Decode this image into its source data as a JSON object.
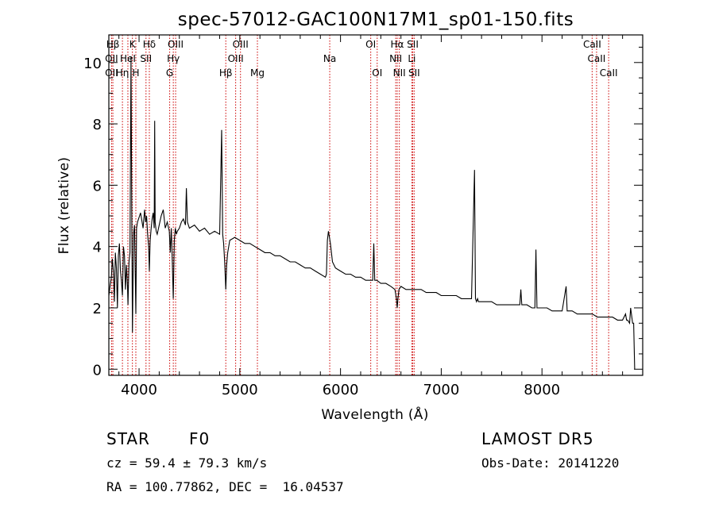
{
  "title": "spec-57012-GAC100N17M1_sp01-150.fits",
  "footer": {
    "class_label": "STAR",
    "subclass": "F0",
    "survey": "LAMOST DR5",
    "cz": "cz = 59.4 ± 79.3 km/s",
    "obs_date": "Obs-Date: 20141220",
    "coords": "RA = 100.77862, DEC =  16.04537"
  },
  "colors": {
    "spectrum": "#000000",
    "line_marker": "#cc0000",
    "background": "#ffffff"
  },
  "chart_data": {
    "type": "line",
    "title": "spec-57012-GAC100N17M1_sp01-150.fits",
    "xlabel": "Wavelength (Å)",
    "ylabel": "Flux (relative)",
    "xlim": [
      3700,
      9000
    ],
    "ylim": [
      -0.2,
      10.9
    ],
    "x_ticks": [
      4000,
      5000,
      6000,
      7000,
      8000
    ],
    "y_ticks": [
      0,
      2,
      4,
      6,
      8,
      10
    ],
    "grid": false,
    "spectral_lines": [
      {
        "label": "Hβ",
        "wavelength": 3740,
        "row": 0
      },
      {
        "label": "OII",
        "wavelength": 3727,
        "row": 1
      },
      {
        "label": "OII",
        "wavelength": 3727,
        "row": 2
      },
      {
        "label": "Hη",
        "wavelength": 3835,
        "row": 2
      },
      {
        "label": "HeI",
        "wavelength": 3889,
        "row": 1
      },
      {
        "label": "K",
        "wavelength": 3934,
        "row": 0
      },
      {
        "label": "H",
        "wavelength": 3968,
        "row": 2
      },
      {
        "label": "Hδ",
        "wavelength": 4102,
        "row": 0
      },
      {
        "label": "SII",
        "wavelength": 4069,
        "row": 1
      },
      {
        "label": "OIII",
        "wavelength": 4363,
        "row": 0
      },
      {
        "label": "Hγ",
        "wavelength": 4340,
        "row": 1
      },
      {
        "label": "G",
        "wavelength": 4304,
        "row": 2
      },
      {
        "label": "Hβ",
        "wavelength": 4861,
        "row": 2
      },
      {
        "label": "OIII",
        "wavelength": 5007,
        "row": 0
      },
      {
        "label": "OIII",
        "wavelength": 4959,
        "row": 1
      },
      {
        "label": "Mg",
        "wavelength": 5175,
        "row": 2
      },
      {
        "label": "Na",
        "wavelength": 5893,
        "row": 1
      },
      {
        "label": "OI",
        "wavelength": 6300,
        "row": 0
      },
      {
        "label": "OI",
        "wavelength": 6364,
        "row": 2
      },
      {
        "label": "Hα",
        "wavelength": 6563,
        "row": 0
      },
      {
        "label": "NII",
        "wavelength": 6548,
        "row": 1
      },
      {
        "label": "NII",
        "wavelength": 6584,
        "row": 2
      },
      {
        "label": "SII",
        "wavelength": 6717,
        "row": 0
      },
      {
        "label": "Li",
        "wavelength": 6708,
        "row": 1
      },
      {
        "label": "SII",
        "wavelength": 6731,
        "row": 2
      },
      {
        "label": "CaII",
        "wavelength": 8498,
        "row": 0
      },
      {
        "label": "CaII",
        "wavelength": 8542,
        "row": 1
      },
      {
        "label": "CaII",
        "wavelength": 8662,
        "row": 2
      }
    ],
    "series": [
      {
        "x": [
          3700,
          3712,
          3725,
          3735,
          3745,
          3755,
          3765,
          3775,
          3785,
          3795,
          3805,
          3815,
          3825,
          3835,
          3845,
          3855,
          3865,
          3875,
          3885,
          3890,
          3900,
          3910,
          3920,
          3925,
          3934,
          3945,
          3955,
          3968,
          3975,
          3985,
          3995,
          4005,
          4015,
          4025,
          4040,
          4055,
          4065,
          4075,
          4085,
          4095,
          4102,
          4110,
          4120,
          4130,
          4140,
          4150,
          4155,
          4160,
          4170,
          4180,
          4200,
          4220,
          4240,
          4260,
          4280,
          4300,
          4310,
          4320,
          4330,
          4340,
          4350,
          4360,
          4370,
          4380,
          4400,
          4420,
          4440,
          4460,
          4470,
          4480,
          4500,
          4550,
          4600,
          4650,
          4700,
          4750,
          4800,
          4820,
          4830,
          4840,
          4850,
          4861,
          4870,
          4880,
          4900,
          4950,
          5000,
          5050,
          5100,
          5150,
          5200,
          5250,
          5300,
          5350,
          5400,
          5450,
          5500,
          5550,
          5600,
          5650,
          5700,
          5750,
          5800,
          5850,
          5860,
          5870,
          5880,
          5890,
          5900,
          5910,
          5920,
          5950,
          6000,
          6050,
          6100,
          6150,
          6200,
          6250,
          6300,
          6320,
          6330,
          6340,
          6360,
          6400,
          6450,
          6500,
          6540,
          6555,
          6563,
          6570,
          6580,
          6600,
          6650,
          6700,
          6750,
          6800,
          6850,
          6900,
          6950,
          7000,
          7050,
          7100,
          7150,
          7200,
          7250,
          7300,
          7330,
          7340,
          7350,
          7360,
          7370,
          7400,
          7450,
          7500,
          7550,
          7600,
          7650,
          7700,
          7750,
          7780,
          7790,
          7800,
          7850,
          7900,
          7930,
          7940,
          7950,
          7960,
          8000,
          8050,
          8100,
          8150,
          8200,
          8240,
          8250,
          8260,
          8300,
          8350,
          8400,
          8450,
          8500,
          8550,
          8600,
          8650,
          8700,
          8750,
          8800,
          8830,
          8840,
          8850,
          8870,
          8880,
          8900,
          8910,
          8920
        ],
        "y": [
          2.4,
          2.7,
          3.0,
          3.6,
          3.2,
          2.2,
          3.8,
          3.3,
          2.0,
          3.7,
          4.1,
          3.2,
          2.9,
          2.4,
          4.0,
          3.7,
          2.6,
          3.4,
          2.7,
          2.1,
          3.5,
          3.8,
          10.2,
          7.0,
          1.2,
          4.4,
          4.7,
          1.8,
          4.6,
          4.8,
          4.9,
          5.0,
          5.1,
          4.9,
          4.6,
          5.2,
          4.8,
          5.0,
          4.4,
          4.0,
          3.2,
          4.2,
          4.6,
          4.9,
          5.1,
          4.6,
          8.1,
          4.8,
          4.5,
          4.4,
          4.7,
          5.0,
          5.2,
          4.6,
          4.8,
          4.5,
          3.8,
          4.6,
          3.5,
          2.3,
          4.2,
          4.6,
          4.4,
          4.5,
          4.6,
          4.8,
          4.9,
          4.7,
          5.9,
          4.8,
          4.6,
          4.7,
          4.5,
          4.6,
          4.4,
          4.5,
          4.4,
          7.8,
          4.4,
          4.1,
          3.5,
          2.6,
          3.4,
          3.8,
          4.2,
          4.3,
          4.2,
          4.1,
          4.1,
          4.0,
          3.9,
          3.8,
          3.8,
          3.7,
          3.7,
          3.6,
          3.5,
          3.5,
          3.4,
          3.3,
          3.3,
          3.2,
          3.1,
          3.0,
          3.1,
          4.2,
          4.5,
          4.3,
          4.1,
          3.8,
          3.5,
          3.3,
          3.2,
          3.1,
          3.1,
          3.0,
          3.0,
          2.9,
          2.9,
          2.9,
          4.1,
          2.9,
          2.9,
          2.8,
          2.8,
          2.7,
          2.6,
          2.3,
          2.0,
          2.3,
          2.6,
          2.7,
          2.6,
          2.6,
          2.6,
          2.6,
          2.5,
          2.5,
          2.5,
          2.4,
          2.4,
          2.4,
          2.4,
          2.3,
          2.3,
          2.3,
          6.5,
          2.3,
          2.2,
          2.3,
          2.2,
          2.2,
          2.2,
          2.2,
          2.1,
          2.1,
          2.1,
          2.1,
          2.1,
          2.1,
          2.6,
          2.1,
          2.1,
          2.0,
          2.0,
          3.9,
          2.0,
          2.0,
          2.0,
          2.0,
          1.9,
          1.9,
          1.9,
          2.7,
          1.9,
          1.9,
          1.9,
          1.8,
          1.8,
          1.8,
          1.8,
          1.7,
          1.7,
          1.7,
          1.7,
          1.6,
          1.6,
          1.8,
          1.6,
          1.6,
          1.5,
          2.0,
          1.5,
          1.5,
          0.0
        ]
      }
    ]
  }
}
